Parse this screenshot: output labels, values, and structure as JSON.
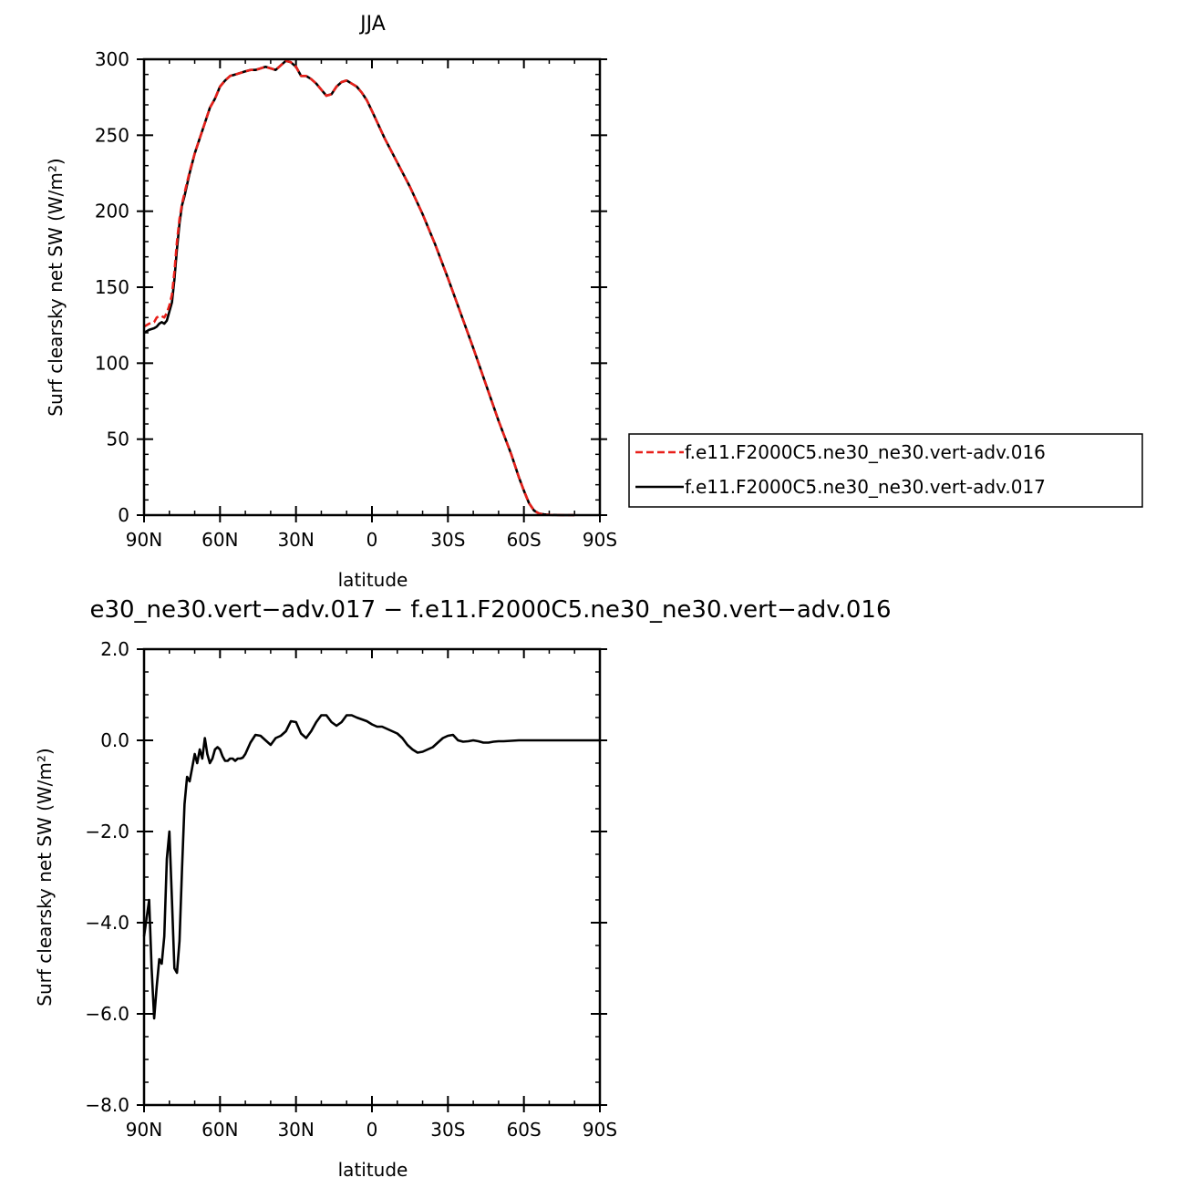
{
  "chart_data": [
    {
      "type": "line",
      "title": "JJA",
      "xlabel": "latitude",
      "ylabel": "Surf clearsky net SW (W/m²)",
      "xlim": [
        90,
        -90
      ],
      "ylim": [
        0,
        300
      ],
      "x_tick_labels": [
        "90N",
        "60N",
        "30N",
        "0",
        "30S",
        "60S",
        "90S"
      ],
      "x_tick_values": [
        90,
        60,
        30,
        0,
        -30,
        -60,
        -90
      ],
      "y_tick_labels": [
        "0",
        "50",
        "100",
        "150",
        "200",
        "250",
        "300"
      ],
      "y_tick_values": [
        0,
        50,
        100,
        150,
        200,
        250,
        300
      ],
      "grid": false,
      "legend_position": "right",
      "series": [
        {
          "name": "f.e11.F2000C5.ne30_ne30.vert-adv.016",
          "color": "#e8201a",
          "dash": "dashed",
          "x": [
            90,
            88,
            86,
            85,
            84,
            83,
            82,
            81,
            80,
            79,
            78,
            77,
            76,
            75,
            74,
            72,
            70,
            68,
            66,
            64,
            62,
            60,
            58,
            56,
            54,
            52,
            50,
            48,
            46,
            44,
            42,
            40,
            38,
            36,
            34,
            32,
            30,
            28,
            26,
            24,
            22,
            20,
            18,
            16,
            14,
            12,
            10,
            8,
            6,
            4,
            2,
            0,
            -5,
            -10,
            -15,
            -20,
            -25,
            -30,
            -35,
            -40,
            -45,
            -50,
            -55,
            -58,
            -60,
            -62,
            -64,
            -66,
            -68,
            -70,
            -75,
            -80
          ],
          "y": [
            124,
            126,
            127,
            130,
            131,
            131,
            130,
            133,
            138,
            145,
            160,
            180,
            195,
            205,
            212,
            226,
            238,
            248,
            258,
            268,
            274,
            282,
            286,
            289,
            290,
            291,
            292,
            293,
            293,
            294,
            295,
            294,
            293,
            296,
            299,
            298,
            295,
            289,
            289,
            287,
            284,
            280,
            276,
            277,
            282,
            285,
            286,
            284,
            282,
            278,
            273,
            266,
            248,
            232,
            216,
            198,
            178,
            156,
            133,
            110,
            86,
            62,
            40,
            25,
            16,
            8,
            3,
            1,
            0.5,
            0.2,
            0,
            0
          ]
        },
        {
          "name": "f.e11.F2000C5.ne30_ne30.vert-adv.017",
          "color": "#000000",
          "dash": "solid",
          "x": [
            90,
            88,
            86,
            85,
            84,
            83,
            82,
            81,
            80,
            79,
            78,
            77,
            76,
            75,
            74,
            72,
            70,
            68,
            66,
            64,
            62,
            60,
            58,
            56,
            54,
            52,
            50,
            48,
            46,
            44,
            42,
            40,
            38,
            36,
            34,
            32,
            30,
            28,
            26,
            24,
            22,
            20,
            18,
            16,
            14,
            12,
            10,
            8,
            6,
            4,
            2,
            0,
            -5,
            -10,
            -15,
            -20,
            -25,
            -30,
            -35,
            -40,
            -45,
            -50,
            -55,
            -58,
            -60,
            -62,
            -64,
            -66,
            -68,
            -70,
            -75,
            -80
          ],
          "y": [
            120,
            122,
            123,
            124,
            126,
            127,
            126,
            128,
            134,
            140,
            155,
            175,
            192,
            204,
            210,
            225,
            238,
            248,
            258,
            268,
            274,
            282,
            286,
            289,
            290,
            291,
            292,
            293,
            293,
            294,
            295,
            294,
            293,
            296,
            299,
            298,
            295,
            289,
            289,
            287,
            284,
            280,
            276,
            277,
            282,
            285,
            286,
            284,
            282,
            278,
            273,
            266,
            248,
            232,
            216,
            198,
            178,
            156,
            133,
            110,
            86,
            62,
            40,
            25,
            16,
            8,
            3,
            1,
            0.5,
            0.2,
            0,
            0
          ]
        }
      ]
    },
    {
      "type": "line",
      "title": "e30_ne30.vert−adv.017 − f.e11.F2000C5.ne30_ne30.vert−adv.016",
      "xlabel": "latitude",
      "ylabel": "Surf clearsky net SW (W/m²)",
      "xlim": [
        90,
        -90
      ],
      "ylim": [
        -8,
        2
      ],
      "x_tick_labels": [
        "90N",
        "60N",
        "30N",
        "0",
        "30S",
        "60S",
        "90S"
      ],
      "x_tick_values": [
        90,
        60,
        30,
        0,
        -30,
        -60,
        -90
      ],
      "y_tick_labels": [
        "−8.0",
        "−6.0",
        "−4.0",
        "−2.0",
        "0.0",
        "2.0"
      ],
      "y_tick_values": [
        -8,
        -6,
        -4,
        -2,
        0,
        2
      ],
      "grid": false,
      "series": [
        {
          "name": "",
          "color": "#000000",
          "dash": "solid",
          "x": [
            90,
            89,
            88,
            87,
            86,
            85,
            84,
            83,
            82,
            81,
            80,
            79,
            78,
            77,
            76,
            75,
            74,
            73,
            72,
            71,
            70,
            69,
            68,
            67,
            66,
            65,
            64,
            63,
            62,
            61,
            60,
            59,
            58,
            57,
            56,
            55,
            54,
            53,
            52,
            51,
            50,
            48,
            46,
            44,
            42,
            40,
            38,
            36,
            34,
            32,
            30,
            28,
            26,
            24,
            22,
            20,
            18,
            16,
            14,
            12,
            10,
            8,
            6,
            4,
            2,
            0,
            -2,
            -4,
            -6,
            -8,
            -10,
            -12,
            -14,
            -16,
            -18,
            -20,
            -22,
            -24,
            -26,
            -28,
            -30,
            -32,
            -34,
            -36,
            -38,
            -40,
            -42,
            -44,
            -46,
            -48,
            -50,
            -52,
            -55,
            -58,
            -60,
            -65,
            -70,
            -75,
            -80,
            -85,
            -90
          ],
          "y": [
            -4.3,
            -3.9,
            -3.5,
            -5.0,
            -6.1,
            -5.4,
            -4.8,
            -4.9,
            -4.3,
            -2.6,
            -2.0,
            -3.5,
            -5.0,
            -5.1,
            -4.4,
            -2.8,
            -1.4,
            -0.8,
            -0.9,
            -0.6,
            -0.3,
            -0.5,
            -0.2,
            -0.4,
            0.05,
            -0.3,
            -0.5,
            -0.4,
            -0.2,
            -0.15,
            -0.2,
            -0.35,
            -0.45,
            -0.45,
            -0.4,
            -0.4,
            -0.45,
            -0.4,
            -0.4,
            -0.38,
            -0.3,
            -0.05,
            0.12,
            0.1,
            0.0,
            -0.1,
            0.05,
            0.1,
            0.2,
            0.42,
            0.4,
            0.15,
            0.05,
            0.2,
            0.4,
            0.55,
            0.55,
            0.4,
            0.32,
            0.4,
            0.55,
            0.55,
            0.5,
            0.46,
            0.42,
            0.35,
            0.3,
            0.3,
            0.25,
            0.2,
            0.15,
            0.05,
            -0.1,
            -0.2,
            -0.27,
            -0.25,
            -0.2,
            -0.15,
            -0.05,
            0.05,
            0.1,
            0.12,
            0.0,
            -0.03,
            -0.02,
            0.0,
            -0.02,
            -0.05,
            -0.05,
            -0.03,
            -0.02,
            -0.02,
            -0.01,
            0.0,
            0.0,
            0.0,
            0.0,
            0.0,
            0.0,
            0.0,
            0.0
          ]
        }
      ]
    }
  ]
}
